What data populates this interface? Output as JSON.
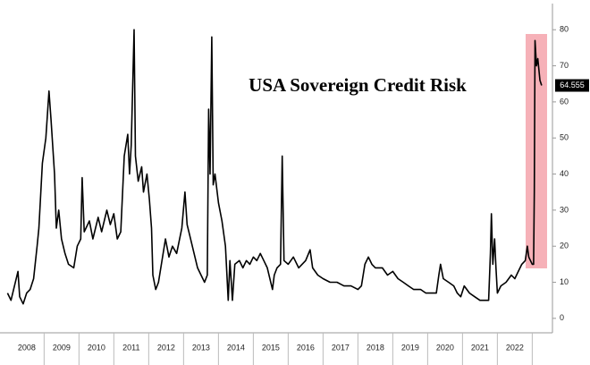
{
  "chart_data": {
    "type": "line",
    "title": "USA Sovereign Credit Risk",
    "x": [
      2007.95,
      2008.05,
      2008.15,
      2008.25,
      2008.3,
      2008.4,
      2008.5,
      2008.6,
      2008.7,
      2008.8,
      2008.85,
      2008.95,
      2009.05,
      2009.14,
      2009.2,
      2009.3,
      2009.35,
      2009.42,
      2009.5,
      2009.6,
      2009.7,
      2009.85,
      2009.95,
      2010.05,
      2010.09,
      2010.15,
      2010.3,
      2010.4,
      2010.55,
      2010.65,
      2010.8,
      2010.9,
      2011.0,
      2011.1,
      2011.2,
      2011.3,
      2011.4,
      2011.45,
      2011.5,
      2011.58,
      2011.62,
      2011.7,
      2011.8,
      2011.85,
      2011.95,
      2012.02,
      2012.08,
      2012.12,
      2012.2,
      2012.28,
      2012.38,
      2012.48,
      2012.58,
      2012.68,
      2012.8,
      2012.95,
      2013.04,
      2013.1,
      2013.2,
      2013.3,
      2013.4,
      2013.5,
      2013.6,
      2013.68,
      2013.72,
      2013.76,
      2013.81,
      2013.85,
      2013.9,
      2014.0,
      2014.1,
      2014.2,
      2014.28,
      2014.33,
      2014.4,
      2014.47,
      2014.6,
      2014.7,
      2014.8,
      2014.9,
      2015.0,
      2015.1,
      2015.2,
      2015.3,
      2015.4,
      2015.55,
      2015.6,
      2015.68,
      2015.78,
      2015.83,
      2015.88,
      2016.0,
      2016.15,
      2016.3,
      2016.5,
      2016.63,
      2016.7,
      2016.85,
      2017.0,
      2017.2,
      2017.4,
      2017.6,
      2017.8,
      2018.0,
      2018.1,
      2018.2,
      2018.3,
      2018.4,
      2018.5,
      2018.7,
      2018.85,
      2019.0,
      2019.15,
      2019.3,
      2019.45,
      2019.6,
      2019.8,
      2019.95,
      2020.1,
      2020.25,
      2020.32,
      2020.37,
      2020.45,
      2020.6,
      2020.75,
      2020.85,
      2020.95,
      2021.05,
      2021.2,
      2021.35,
      2021.5,
      2021.65,
      2021.75,
      2021.8,
      2021.83,
      2021.87,
      2021.92,
      2021.96,
      2022.0,
      2022.1,
      2022.25,
      2022.4,
      2022.5,
      2022.6,
      2022.7,
      2022.8,
      2022.86,
      2022.9,
      2022.95,
      2023.0,
      2023.04,
      2023.06,
      2023.08,
      2023.12,
      2023.16,
      2023.22,
      2023.27
    ],
    "series": [
      {
        "color": "#000000",
        "values": [
          7,
          5,
          9,
          13,
          6,
          4,
          7,
          8,
          11,
          20,
          25,
          43,
          50,
          63,
          55,
          40,
          25,
          30,
          22,
          18,
          15,
          14,
          20,
          22,
          39,
          24,
          27,
          22,
          28,
          24,
          30,
          26,
          29,
          22,
          24,
          45,
          51,
          40,
          48,
          80,
          45,
          38,
          42,
          35,
          40,
          33,
          25,
          12,
          8,
          10,
          16,
          22,
          17,
          20,
          18,
          25,
          35,
          26,
          22,
          18,
          14,
          12,
          10,
          12,
          58,
          40,
          78,
          37,
          40,
          32,
          27,
          20,
          5,
          16,
          5,
          15,
          16,
          14,
          16,
          15,
          17,
          16,
          18,
          16,
          14,
          8,
          12,
          14,
          15,
          45,
          16,
          15,
          17,
          14,
          16,
          19,
          14,
          12,
          11,
          10,
          10,
          9,
          9,
          8,
          9,
          15,
          17,
          15,
          14,
          14,
          12,
          13,
          11,
          10,
          9,
          8,
          8,
          7,
          7,
          7,
          12,
          15,
          11,
          10,
          9,
          7,
          6,
          9,
          7,
          6,
          5,
          5,
          5,
          18,
          29,
          15,
          22,
          14,
          7,
          9,
          10,
          12,
          11,
          13,
          15,
          16,
          20,
          17,
          16,
          15,
          15,
          35,
          77,
          70,
          72,
          66,
          64.555
        ]
      }
    ],
    "xlim": [
      2007.94,
      2023.58
    ],
    "xticks": [
      {
        "value": 2008.5,
        "label": "2008"
      },
      {
        "value": 2009.5,
        "label": "2009"
      },
      {
        "value": 2010.5,
        "label": "2010"
      },
      {
        "value": 2011.5,
        "label": "2011"
      },
      {
        "value": 2012.5,
        "label": "2012"
      },
      {
        "value": 2013.5,
        "label": "2013"
      },
      {
        "value": 2014.5,
        "label": "2014"
      },
      {
        "value": 2015.5,
        "label": "2015"
      },
      {
        "value": 2016.5,
        "label": "2016"
      },
      {
        "value": 2017.5,
        "label": "2017"
      },
      {
        "value": 2018.5,
        "label": "2018"
      },
      {
        "value": 2019.5,
        "label": "2019"
      },
      {
        "value": 2020.5,
        "label": "2020"
      },
      {
        "value": 2021.5,
        "label": "2021"
      },
      {
        "value": 2022.5,
        "label": "2022"
      }
    ],
    "ylim": [
      -4,
      87
    ],
    "yticks": [
      0,
      10,
      20,
      30,
      40,
      50,
      60,
      70,
      80
    ],
    "grid": false
  }
}
